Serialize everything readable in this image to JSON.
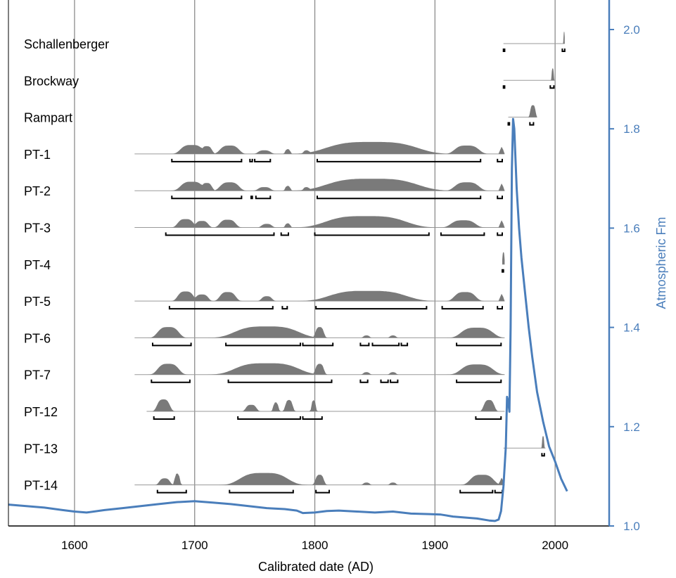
{
  "chart_data": {
    "type": "area",
    "xlabel": "Calibrated date (AD)",
    "ylabel": "Atmospheric Fm",
    "xlim": [
      1545,
      2045
    ],
    "ylim": [
      1.0,
      2.0
    ],
    "x_ticks": [
      "1600",
      "1700",
      "1800",
      "1900",
      "2000"
    ],
    "y_ticks": [
      "1.0",
      "1.2",
      "1.4",
      "1.6",
      "1.8",
      "2.0"
    ],
    "grid": "vertical lines at each x tick",
    "atmosphere_color": "#4a7ebb",
    "distribution_color": "#7a7a7a",
    "atmospheric_curve": [
      [
        1545,
        1.043
      ],
      [
        1560,
        1.04
      ],
      [
        1575,
        1.037
      ],
      [
        1590,
        1.032
      ],
      [
        1600,
        1.029
      ],
      [
        1610,
        1.027
      ],
      [
        1625,
        1.032
      ],
      [
        1640,
        1.036
      ],
      [
        1655,
        1.04
      ],
      [
        1670,
        1.044
      ],
      [
        1685,
        1.048
      ],
      [
        1700,
        1.05
      ],
      [
        1715,
        1.047
      ],
      [
        1730,
        1.044
      ],
      [
        1745,
        1.04
      ],
      [
        1760,
        1.036
      ],
      [
        1775,
        1.034
      ],
      [
        1785,
        1.031
      ],
      [
        1790,
        1.026
      ],
      [
        1800,
        1.027
      ],
      [
        1810,
        1.03
      ],
      [
        1820,
        1.031
      ],
      [
        1835,
        1.029
      ],
      [
        1850,
        1.027
      ],
      [
        1865,
        1.029
      ],
      [
        1880,
        1.025
      ],
      [
        1895,
        1.024
      ],
      [
        1905,
        1.023
      ],
      [
        1915,
        1.019
      ],
      [
        1925,
        1.017
      ],
      [
        1935,
        1.015
      ],
      [
        1945,
        1.011
      ],
      [
        1950,
        1.01
      ],
      [
        1953,
        1.013
      ],
      [
        1955,
        1.03
      ],
      [
        1957,
        1.08
      ],
      [
        1959,
        1.16
      ],
      [
        1960,
        1.26
      ],
      [
        1961,
        1.25
      ],
      [
        1962,
        1.23
      ],
      [
        1963,
        1.4
      ],
      [
        1964,
        1.72
      ],
      [
        1965,
        1.82
      ],
      [
        1966,
        1.8
      ],
      [
        1967,
        1.74
      ],
      [
        1968,
        1.68
      ],
      [
        1970,
        1.6
      ],
      [
        1972,
        1.54
      ],
      [
        1975,
        1.47
      ],
      [
        1978,
        1.4
      ],
      [
        1981,
        1.34
      ],
      [
        1985,
        1.27
      ],
      [
        1990,
        1.21
      ],
      [
        1995,
        1.16
      ],
      [
        2000,
        1.13
      ],
      [
        2005,
        1.095
      ],
      [
        2010,
        1.07
      ]
    ],
    "samples": [
      {
        "name": "Schallenberger",
        "range": [
          1957,
          2008
        ],
        "peaks": [
          [
            2007,
            2008,
            1.0
          ]
        ],
        "ranges": [
          [
            1957,
            1958
          ],
          [
            2006,
            2008
          ]
        ]
      },
      {
        "name": "Brockway",
        "range": [
          1957,
          2000
        ],
        "peaks": [
          [
            1997,
            1999,
            1.0
          ]
        ],
        "ranges": [
          [
            1957,
            1958
          ],
          [
            1996,
            1999
          ]
        ]
      },
      {
        "name": "Rampart",
        "range": [
          1961,
          1985
        ],
        "peaks": [
          [
            1979,
            1984,
            1.0
          ]
        ],
        "ranges": [
          [
            1961,
            1962
          ],
          [
            1979,
            1982
          ]
        ]
      },
      {
        "name": "PT-1",
        "range": [
          1650,
          1958
        ],
        "peaks": [
          [
            1687,
            1708,
            0.75
          ],
          [
            1705,
            1715,
            0.65
          ],
          [
            1720,
            1738,
            0.7
          ],
          [
            1752,
            1764,
            0.3
          ],
          [
            1775,
            1780,
            0.4
          ],
          [
            1790,
            1796,
            0.3
          ],
          [
            1805,
            1890,
            1.0
          ],
          [
            1915,
            1938,
            0.7
          ],
          [
            1954,
            1957,
            0.6
          ]
        ],
        "ranges": [
          [
            1681,
            1739
          ],
          [
            1746,
            1748
          ],
          [
            1750,
            1763
          ],
          [
            1802,
            1938
          ],
          [
            1952,
            1956
          ]
        ]
      },
      {
        "name": "PT-2",
        "range": [
          1650,
          1958
        ],
        "peaks": [
          [
            1687,
            1708,
            0.75
          ],
          [
            1705,
            1715,
            0.65
          ],
          [
            1720,
            1738,
            0.7
          ],
          [
            1752,
            1764,
            0.3
          ],
          [
            1775,
            1780,
            0.4
          ],
          [
            1790,
            1796,
            0.3
          ],
          [
            1805,
            1890,
            1.0
          ],
          [
            1915,
            1938,
            0.7
          ],
          [
            1954,
            1957,
            0.6
          ]
        ],
        "ranges": [
          [
            1681,
            1739
          ],
          [
            1747,
            1748
          ],
          [
            1751,
            1763
          ],
          [
            1802,
            1938
          ],
          [
            1952,
            1956
          ]
        ]
      },
      {
        "name": "PT-3",
        "range": [
          1650,
          1958
        ],
        "peaks": [
          [
            1685,
            1700,
            0.7
          ],
          [
            1700,
            1712,
            0.55
          ],
          [
            1720,
            1735,
            0.65
          ],
          [
            1755,
            1765,
            0.3
          ],
          [
            1775,
            1780,
            0.35
          ],
          [
            1805,
            1880,
            0.95
          ],
          [
            1912,
            1935,
            0.6
          ],
          [
            1954,
            1957,
            0.6
          ]
        ],
        "ranges": [
          [
            1676,
            1766
          ],
          [
            1772,
            1778
          ],
          [
            1800,
            1895
          ],
          [
            1905,
            1941
          ],
          [
            1952,
            1956
          ]
        ]
      },
      {
        "name": "PT-4",
        "range": [
          1956,
          1958
        ],
        "peaks": [
          [
            1956,
            1958,
            1.0
          ]
        ],
        "ranges": [
          [
            1956,
            1957
          ]
        ]
      },
      {
        "name": "PT-5",
        "range": [
          1650,
          1958
        ],
        "peaks": [
          [
            1685,
            1700,
            0.8
          ],
          [
            1700,
            1712,
            0.55
          ],
          [
            1720,
            1735,
            0.75
          ],
          [
            1755,
            1765,
            0.4
          ],
          [
            1808,
            1880,
            0.85
          ],
          [
            1915,
            1935,
            0.75
          ],
          [
            1954,
            1957,
            0.6
          ]
        ],
        "ranges": [
          [
            1679,
            1765
          ],
          [
            1773,
            1777
          ],
          [
            1801,
            1893
          ],
          [
            1906,
            1940
          ],
          [
            1952,
            1956
          ]
        ]
      },
      {
        "name": "PT-6",
        "range": [
          1650,
          1958
        ],
        "peaks": [
          [
            1668,
            1688,
            0.9
          ],
          [
            1730,
            1790,
            0.95
          ],
          [
            1800,
            1808,
            0.9
          ],
          [
            1840,
            1846,
            0.2
          ],
          [
            1862,
            1868,
            0.2
          ],
          [
            1920,
            1950,
            0.85
          ]
        ],
        "ranges": [
          [
            1665,
            1697
          ],
          [
            1726,
            1788
          ],
          [
            1790,
            1815
          ],
          [
            1838,
            1845
          ],
          [
            1848,
            1870
          ],
          [
            1872,
            1877
          ],
          [
            1918,
            1955
          ]
        ]
      },
      {
        "name": "PT-7",
        "range": [
          1650,
          1958
        ],
        "peaks": [
          [
            1668,
            1688,
            0.9
          ],
          [
            1730,
            1790,
            0.95
          ],
          [
            1800,
            1808,
            0.9
          ],
          [
            1840,
            1846,
            0.2
          ],
          [
            1862,
            1868,
            0.2
          ],
          [
            1920,
            1950,
            0.85
          ]
        ],
        "ranges": [
          [
            1664,
            1696
          ],
          [
            1728,
            1814
          ],
          [
            1838,
            1844
          ],
          [
            1855,
            1861
          ],
          [
            1863,
            1869
          ],
          [
            1918,
            1955
          ]
        ]
      },
      {
        "name": "PT-12",
        "range": [
          1660,
          1958
        ],
        "peaks": [
          [
            1668,
            1680,
            1.0
          ],
          [
            1742,
            1752,
            0.55
          ],
          [
            1765,
            1770,
            0.75
          ],
          [
            1775,
            1782,
            0.95
          ],
          [
            1797,
            1801,
            0.95
          ],
          [
            1940,
            1950,
            0.95
          ]
        ],
        "ranges": [
          [
            1666,
            1683
          ],
          [
            1736,
            1788
          ],
          [
            1790,
            1806
          ],
          [
            1934,
            1955
          ]
        ]
      },
      {
        "name": "PT-13",
        "range": [
          1957,
          1992
        ],
        "peaks": [
          [
            1989,
            1991,
            1.0
          ]
        ],
        "ranges": [
          [
            1989,
            1991
          ]
        ]
      },
      {
        "name": "PT-14",
        "range": [
          1650,
          1958
        ],
        "peaks": [
          [
            1670,
            1680,
            0.55
          ],
          [
            1683,
            1688,
            0.95
          ],
          [
            1735,
            1780,
            1.0
          ],
          [
            1800,
            1808,
            0.85
          ],
          [
            1840,
            1846,
            0.2
          ],
          [
            1862,
            1868,
            0.2
          ],
          [
            1928,
            1950,
            0.85
          ],
          [
            1954,
            1957,
            0.6
          ]
        ],
        "ranges": [
          [
            1669,
            1693
          ],
          [
            1729,
            1782
          ],
          [
            1801,
            1812
          ],
          [
            1921,
            1948
          ],
          [
            1950,
            1956
          ]
        ]
      }
    ]
  }
}
